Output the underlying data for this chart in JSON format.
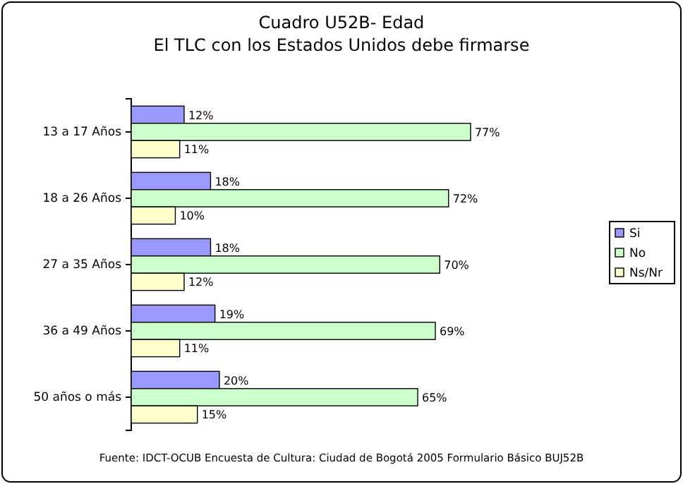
{
  "chart_data": {
    "type": "bar",
    "orientation": "horizontal",
    "title": "Cuadro U52B- Edad",
    "subtitle": "El TLC con los Estados Unidos debe firmarse",
    "categories": [
      "13 a 17 Años",
      "18 a 26 Años",
      "27 a 35 Años",
      "36 a 49 Años",
      "50 años o más"
    ],
    "series": [
      {
        "name": "Si",
        "color": "#9999ff",
        "values": [
          12,
          18,
          18,
          19,
          20
        ],
        "value_labels": [
          "12%",
          "18%",
          "18%",
          "19%",
          "20%"
        ]
      },
      {
        "name": "No",
        "color": "#ccffcc",
        "values": [
          77,
          72,
          70,
          69,
          65
        ],
        "value_labels": [
          "77%",
          "72%",
          "70%",
          "69%",
          "65%"
        ]
      },
      {
        "name": "Ns/Nr",
        "color": "#ffffcc",
        "values": [
          11,
          10,
          12,
          11,
          15
        ],
        "value_labels": [
          "11%",
          "10%",
          "12%",
          "11%",
          "15%"
        ]
      }
    ],
    "legend": "right",
    "grid": false,
    "annotations": [
      "Fuente: IDCT-OCUB Encuesta de Cultura: Ciudad de Bogotá 2005 Formulario Básico BUJ52B"
    ]
  }
}
